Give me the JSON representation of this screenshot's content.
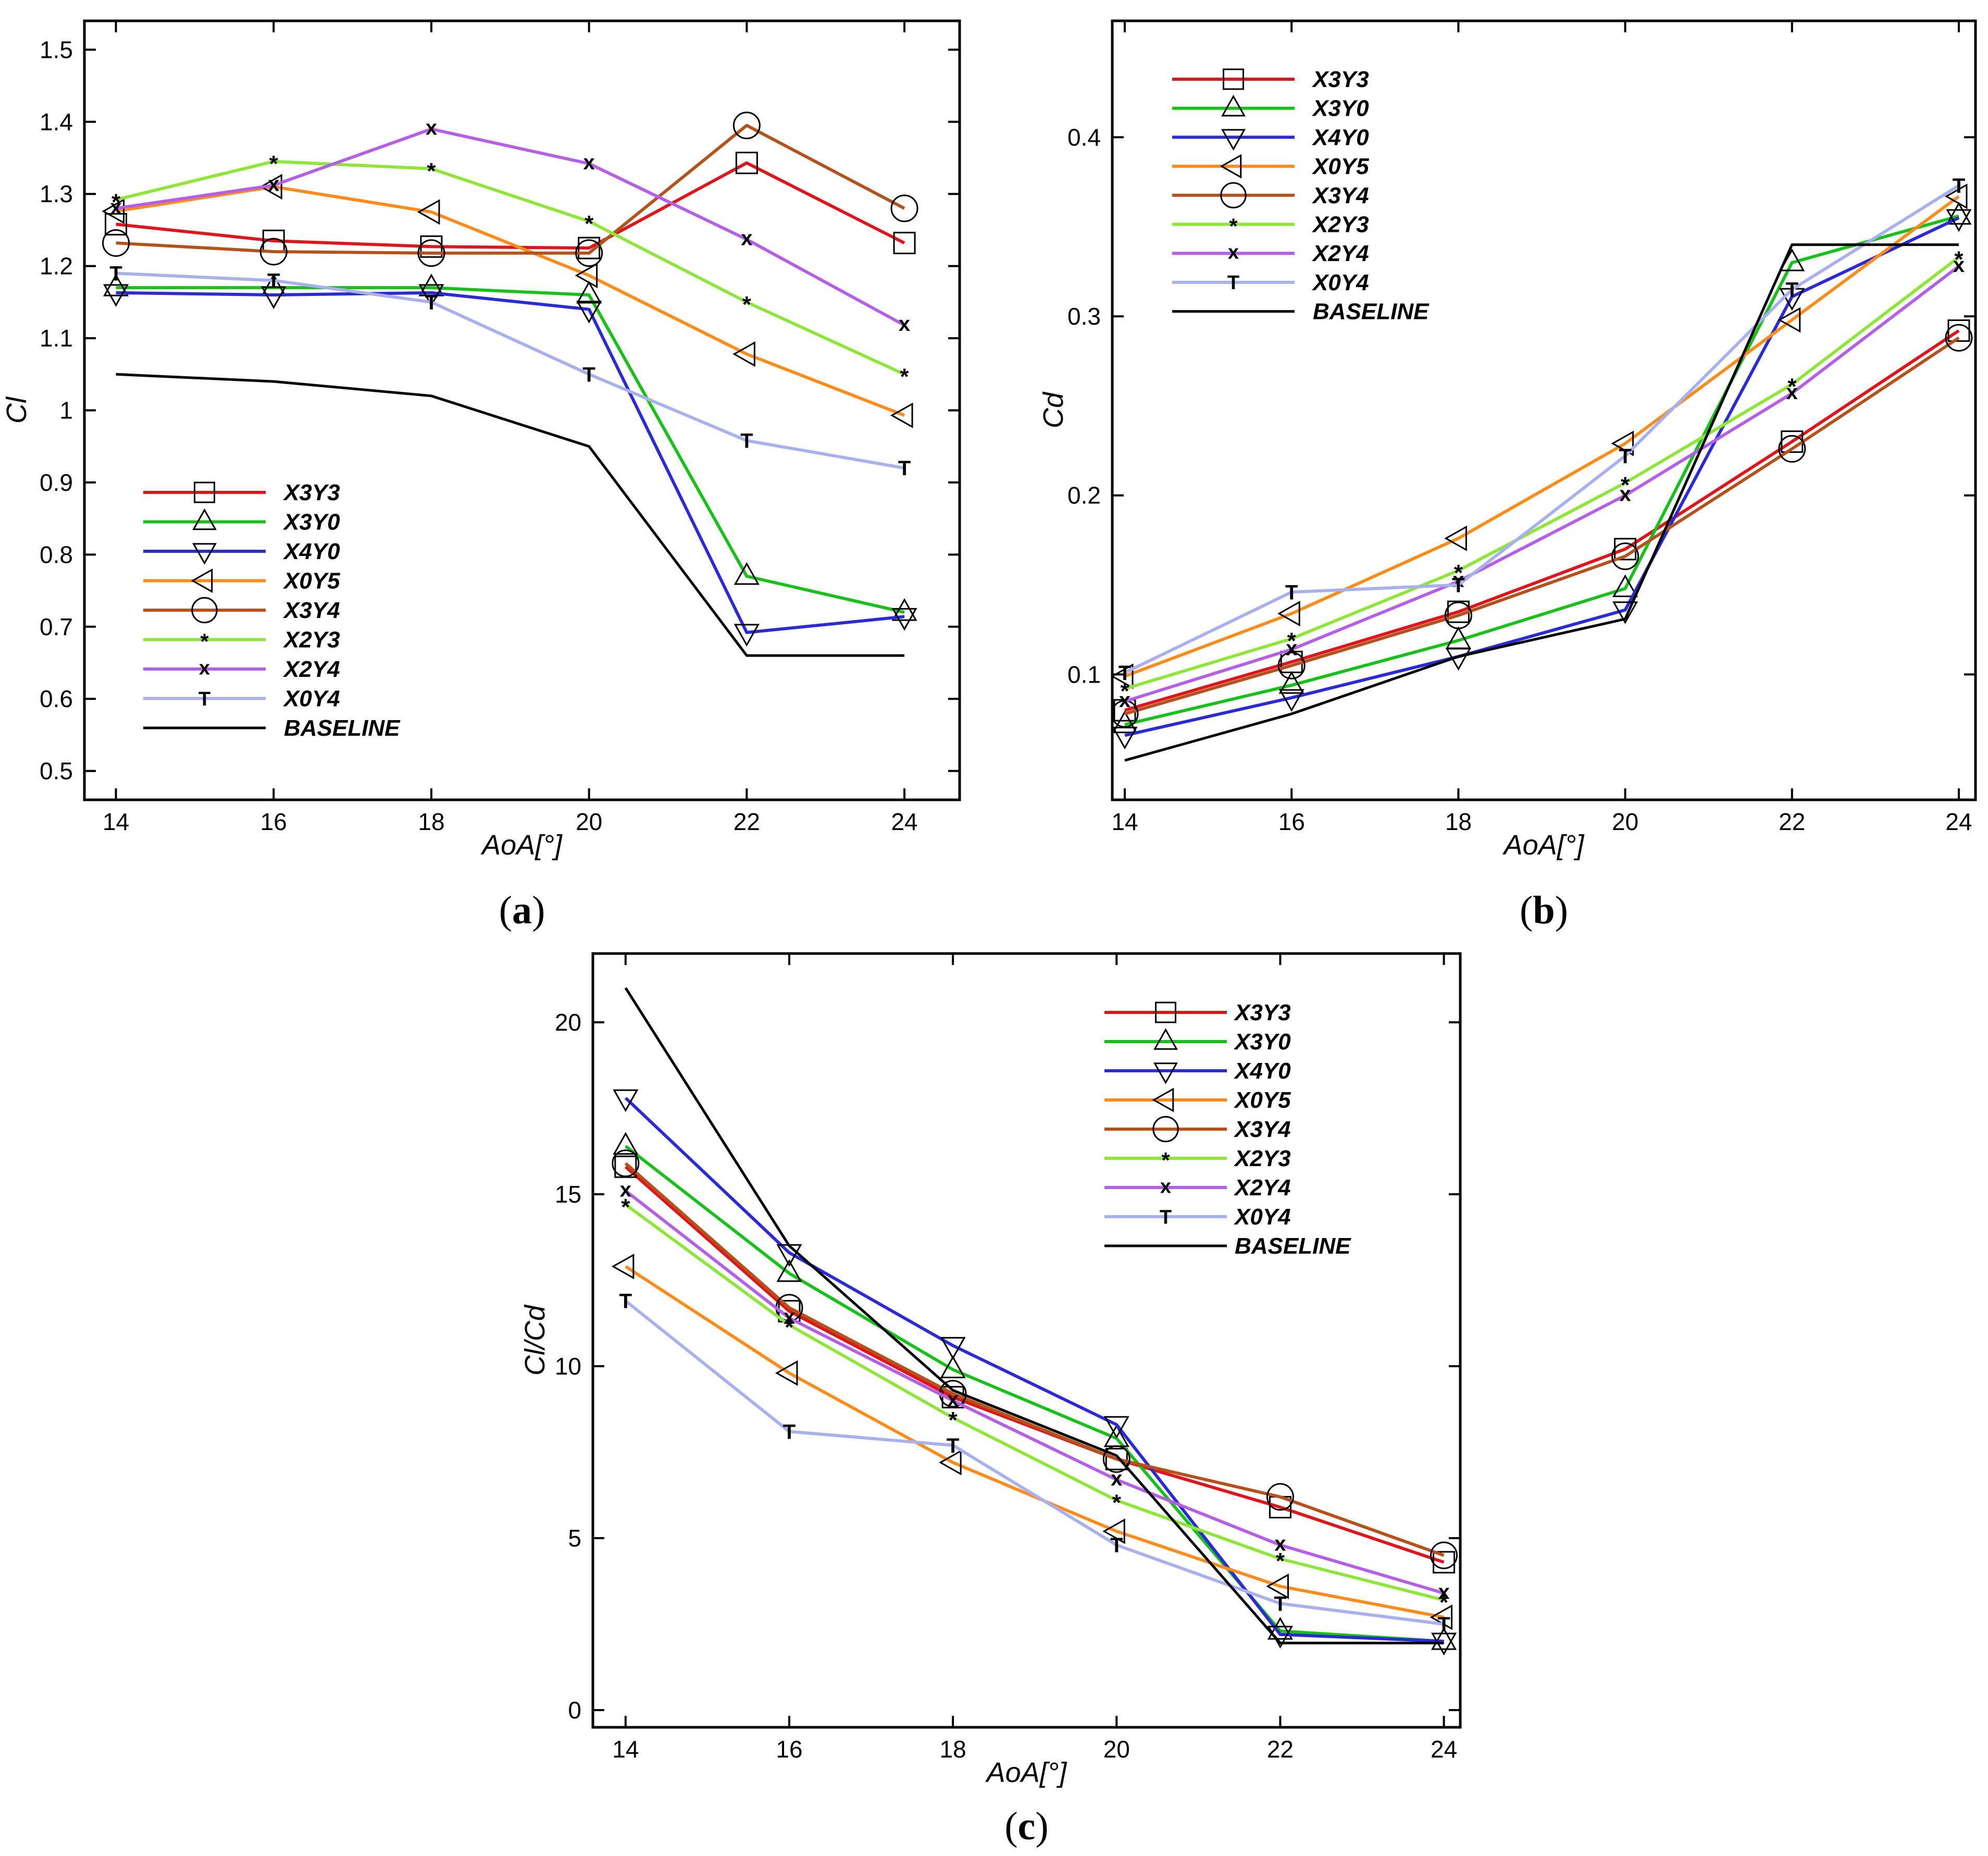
{
  "series_styles": [
    {
      "name": "X3Y3",
      "color": "#e0151b",
      "marker": "square"
    },
    {
      "name": "X3Y0",
      "color": "#17c11a",
      "marker": "triangle-up"
    },
    {
      "name": "X4Y0",
      "color": "#2a2ad6",
      "marker": "triangle-down"
    },
    {
      "name": "X0Y5",
      "color": "#ff8c1a",
      "marker": "triangle-left"
    },
    {
      "name": "X3Y4",
      "color": "#b5521b",
      "marker": "circle"
    },
    {
      "name": "X2Y3",
      "color": "#8fe63a",
      "marker": "star"
    },
    {
      "name": "X2Y4",
      "color": "#b55ee8",
      "marker": "x"
    },
    {
      "name": "X0Y4",
      "color": "#a9b0ee",
      "marker": "T"
    },
    {
      "name": "BASELINE",
      "color": "#000000",
      "marker": "none"
    }
  ],
  "chart_data": [
    {
      "panel": "(a)",
      "type": "line",
      "xlabel": "AoA[°]",
      "ylabel": "Cl",
      "xlim": [
        13.6,
        24.7
      ],
      "ylim": [
        0.46,
        1.54
      ],
      "xticks": [
        14,
        16,
        18,
        20,
        22,
        24
      ],
      "yticks": [
        0.5,
        0.6,
        0.7,
        0.8,
        0.9,
        1,
        1.1,
        1.2,
        1.3,
        1.4,
        1.5
      ],
      "ytick_labels": [
        "0.5",
        "0.6",
        "0.7",
        "0.8",
        "0.9",
        "1",
        "1.1",
        "1.2",
        "1.3",
        "1.4",
        "1.5"
      ],
      "legend_position": "lower-left",
      "grid": false,
      "x": [
        14,
        16,
        18,
        20,
        22,
        24
      ],
      "series": [
        {
          "name": "X3Y3",
          "values": [
            1.258,
            1.235,
            1.227,
            1.225,
            1.343,
            1.232
          ]
        },
        {
          "name": "X3Y0",
          "values": [
            1.17,
            1.17,
            1.17,
            1.16,
            0.77,
            0.72
          ]
        },
        {
          "name": "X4Y0",
          "values": [
            1.163,
            1.16,
            1.163,
            1.14,
            0.692,
            0.714
          ]
        },
        {
          "name": "X0Y5",
          "values": [
            1.276,
            1.31,
            1.275,
            1.187,
            1.078,
            0.993
          ]
        },
        {
          "name": "X3Y4",
          "values": [
            1.232,
            1.22,
            1.218,
            1.218,
            1.395,
            1.28
          ]
        },
        {
          "name": "X2Y3",
          "values": [
            1.292,
            1.345,
            1.335,
            1.262,
            1.15,
            1.05
          ]
        },
        {
          "name": "X2Y4",
          "values": [
            1.28,
            1.312,
            1.39,
            1.342,
            1.237,
            1.118
          ]
        },
        {
          "name": "X0Y4",
          "values": [
            1.19,
            1.18,
            1.15,
            1.05,
            0.958,
            0.92
          ]
        },
        {
          "name": "BASELINE",
          "values": [
            1.05,
            1.04,
            1.02,
            0.95,
            0.66,
            0.66
          ]
        }
      ]
    },
    {
      "panel": "(b)",
      "type": "line",
      "xlabel": "AoA[°]",
      "ylabel": "Cd",
      "xlim": [
        13.85,
        24.2
      ],
      "ylim": [
        0.03,
        0.465
      ],
      "xticks": [
        14,
        16,
        18,
        20,
        22,
        24
      ],
      "yticks": [
        0.1,
        0.2,
        0.3,
        0.4
      ],
      "ytick_labels": [
        "0.1",
        "0.2",
        "0.3",
        "0.4"
      ],
      "legend_position": "upper-left",
      "grid": false,
      "x": [
        14,
        16,
        18,
        20,
        22,
        24
      ],
      "series": [
        {
          "name": "X3Y3",
          "values": [
            0.08,
            0.107,
            0.135,
            0.17,
            0.23,
            0.292
          ]
        },
        {
          "name": "X3Y0",
          "values": [
            0.072,
            0.094,
            0.119,
            0.148,
            0.33,
            0.356
          ]
        },
        {
          "name": "X4Y0",
          "values": [
            0.066,
            0.087,
            0.11,
            0.136,
            0.311,
            0.355
          ]
        },
        {
          "name": "X0Y5",
          "values": [
            0.099,
            0.134,
            0.176,
            0.229,
            0.298,
            0.367
          ]
        },
        {
          "name": "X3Y4",
          "values": [
            0.078,
            0.105,
            0.133,
            0.166,
            0.226,
            0.288
          ]
        },
        {
          "name": "X2Y3",
          "values": [
            0.092,
            0.12,
            0.158,
            0.207,
            0.262,
            0.333
          ]
        },
        {
          "name": "X2Y4",
          "values": [
            0.085,
            0.114,
            0.152,
            0.2,
            0.257,
            0.328
          ]
        },
        {
          "name": "X0Y4",
          "values": [
            0.101,
            0.146,
            0.15,
            0.222,
            0.315,
            0.373
          ]
        },
        {
          "name": "BASELINE",
          "values": [
            0.052,
            0.078,
            0.11,
            0.131,
            0.34,
            0.34
          ]
        }
      ]
    },
    {
      "panel": "(c)",
      "type": "line",
      "xlabel": "AoA[°]",
      "ylabel": "Cl/Cd",
      "xlim": [
        13.6,
        24.2
      ],
      "ylim": [
        -0.5,
        22
      ],
      "xticks": [
        14,
        16,
        18,
        20,
        22,
        24
      ],
      "yticks": [
        0,
        5,
        10,
        15,
        20
      ],
      "ytick_labels": [
        "0",
        "5",
        "10",
        "15",
        "20"
      ],
      "legend_position": "upper-right",
      "grid": false,
      "x": [
        14,
        16,
        18,
        20,
        22,
        24
      ],
      "series": [
        {
          "name": "X3Y3",
          "values": [
            15.8,
            11.6,
            9.1,
            7.3,
            5.9,
            4.3
          ]
        },
        {
          "name": "X3Y0",
          "values": [
            16.4,
            12.7,
            9.9,
            7.9,
            2.3,
            2.0
          ]
        },
        {
          "name": "X4Y0",
          "values": [
            17.8,
            13.3,
            10.6,
            8.3,
            2.2,
            2.0
          ]
        },
        {
          "name": "X0Y5",
          "values": [
            12.9,
            9.8,
            7.2,
            5.2,
            3.6,
            2.7
          ]
        },
        {
          "name": "X3Y4",
          "values": [
            15.9,
            11.7,
            9.2,
            7.3,
            6.2,
            4.5
          ]
        },
        {
          "name": "X2Y3",
          "values": [
            14.7,
            11.2,
            8.5,
            6.1,
            4.4,
            3.2
          ]
        },
        {
          "name": "X2Y4",
          "values": [
            15.1,
            11.4,
            9.0,
            6.7,
            4.8,
            3.4
          ]
        },
        {
          "name": "X0Y4",
          "values": [
            11.9,
            8.1,
            7.7,
            4.8,
            3.1,
            2.5
          ]
        },
        {
          "name": "BASELINE",
          "values": [
            21.0,
            13.5,
            9.3,
            7.4,
            1.95,
            1.95
          ]
        }
      ]
    }
  ]
}
